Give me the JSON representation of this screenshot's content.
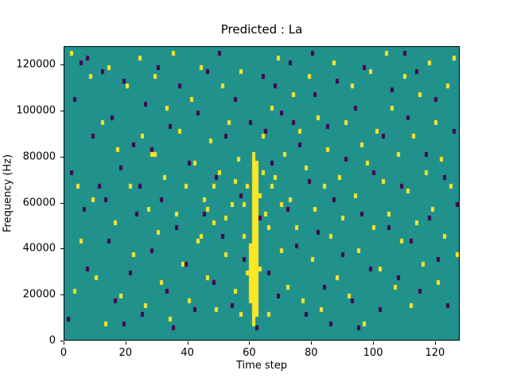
{
  "chart_data": {
    "type": "heatmap",
    "title": "Predicted : La",
    "xlabel": "Time step",
    "ylabel": "Frequency (Hz)",
    "x_range": [
      0,
      128
    ],
    "y_range": [
      0,
      128000
    ],
    "x_ticks": {
      "values": [
        0,
        20,
        40,
        60,
        80,
        100,
        120
      ],
      "labels": [
        "0",
        "20",
        "40",
        "60",
        "80",
        "100",
        "120"
      ]
    },
    "y_ticks": {
      "values": [
        0,
        20000,
        40000,
        60000,
        80000,
        100000,
        120000
      ],
      "labels": [
        "0",
        "20000",
        "40000",
        "60000",
        "80000",
        "100000",
        "120000"
      ]
    },
    "grid": {
      "time_steps": 128,
      "freq_bins": 64,
      "hz_per_bin": 2000
    },
    "colors": {
      "background": "#21918c",
      "active": "#fde725",
      "inactive": "#440154",
      "frame": "#000000"
    },
    "legend": "none",
    "streaks": [
      {
        "t": 60,
        "bin_start": 9,
        "bin_end": 20
      },
      {
        "t": 61,
        "bin_start": 3,
        "bin_end": 40
      },
      {
        "t": 62,
        "bin_start": 5,
        "bin_end": 38
      }
    ],
    "cells": {
      "yellow": [
        [
          2,
          62
        ],
        [
          3,
          10
        ],
        [
          4,
          33
        ],
        [
          5,
          21
        ],
        [
          8,
          57
        ],
        [
          9,
          30
        ],
        [
          10,
          13
        ],
        [
          12,
          47
        ],
        [
          13,
          3
        ],
        [
          14,
          59
        ],
        [
          16,
          25
        ],
        [
          17,
          41
        ],
        [
          18,
          9
        ],
        [
          20,
          55
        ],
        [
          21,
          33
        ],
        [
          22,
          18
        ],
        [
          24,
          61
        ],
        [
          25,
          44
        ],
        [
          26,
          7
        ],
        [
          27,
          28
        ],
        [
          28,
          40
        ],
        [
          29,
          40
        ],
        [
          29,
          57
        ],
        [
          30,
          23
        ],
        [
          31,
          12
        ],
        [
          32,
          35
        ],
        [
          33,
          50
        ],
        [
          34,
          4
        ],
        [
          35,
          62
        ],
        [
          36,
          27
        ],
        [
          37,
          45
        ],
        [
          38,
          16
        ],
        [
          39,
          33
        ],
        [
          40,
          8
        ],
        [
          41,
          52
        ],
        [
          42,
          38
        ],
        [
          43,
          21
        ],
        [
          44,
          59
        ],
        [
          45,
          30
        ],
        [
          46,
          13
        ],
        [
          47,
          43
        ],
        [
          48,
          25
        ],
        [
          49,
          6
        ],
        [
          50,
          36
        ],
        [
          51,
          55
        ],
        [
          52,
          18
        ],
        [
          53,
          47
        ],
        [
          54,
          29
        ],
        [
          55,
          10
        ],
        [
          56,
          39
        ],
        [
          57,
          58
        ],
        [
          58,
          22
        ],
        [
          59,
          33
        ],
        [
          63,
          15
        ],
        [
          64,
          44
        ],
        [
          65,
          27
        ],
        [
          66,
          5
        ],
        [
          67,
          50
        ],
        [
          68,
          35
        ],
        [
          69,
          61
        ],
        [
          70,
          19
        ],
        [
          71,
          40
        ],
        [
          72,
          11
        ],
        [
          73,
          30
        ],
        [
          74,
          53
        ],
        [
          75,
          24
        ],
        [
          76,
          45
        ],
        [
          77,
          8
        ],
        [
          78,
          37
        ],
        [
          79,
          57
        ],
        [
          80,
          17
        ],
        [
          81,
          28
        ],
        [
          82,
          48
        ],
        [
          83,
          6
        ],
        [
          84,
          33
        ],
        [
          85,
          41
        ],
        [
          86,
          22
        ],
        [
          87,
          60
        ],
        [
          88,
          13
        ],
        [
          89,
          35
        ],
        [
          90,
          26
        ],
        [
          91,
          47
        ],
        [
          92,
          9
        ],
        [
          93,
          55
        ],
        [
          94,
          31
        ],
        [
          95,
          19
        ],
        [
          96,
          42
        ],
        [
          97,
          3
        ],
        [
          98,
          38
        ],
        [
          99,
          58
        ],
        [
          100,
          24
        ],
        [
          101,
          45
        ],
        [
          102,
          15
        ],
        [
          103,
          34
        ],
        [
          104,
          62
        ],
        [
          105,
          27
        ],
        [
          106,
          50
        ],
        [
          107,
          11
        ],
        [
          108,
          40
        ],
        [
          109,
          21
        ],
        [
          110,
          57
        ],
        [
          111,
          32
        ],
        [
          112,
          7
        ],
        [
          113,
          44
        ],
        [
          114,
          25
        ],
        [
          115,
          53
        ],
        [
          116,
          16
        ],
        [
          117,
          36
        ],
        [
          118,
          60
        ],
        [
          119,
          28
        ],
        [
          120,
          47
        ],
        [
          121,
          12
        ],
        [
          122,
          39
        ],
        [
          123,
          22
        ],
        [
          124,
          55
        ],
        [
          125,
          33
        ],
        [
          126,
          61
        ],
        [
          127,
          18
        ],
        [
          55,
          34
        ],
        [
          58,
          29
        ],
        [
          63,
          31
        ],
        [
          66,
          24
        ],
        [
          59,
          14
        ],
        [
          57,
          5
        ],
        [
          60,
          8
        ],
        [
          64,
          36
        ],
        [
          67,
          33
        ],
        [
          70,
          29
        ],
        [
          46,
          28
        ],
        [
          44,
          22
        ],
        [
          48,
          33
        ],
        [
          52,
          26
        ]
      ],
      "purple": [
        [
          1,
          4
        ],
        [
          3,
          52
        ],
        [
          5,
          60
        ],
        [
          6,
          28
        ],
        [
          7,
          15
        ],
        [
          9,
          44
        ],
        [
          11,
          33
        ],
        [
          12,
          58
        ],
        [
          14,
          21
        ],
        [
          15,
          48
        ],
        [
          16,
          8
        ],
        [
          18,
          37
        ],
        [
          19,
          56
        ],
        [
          21,
          14
        ],
        [
          22,
          42
        ],
        [
          23,
          27
        ],
        [
          25,
          5
        ],
        [
          26,
          51
        ],
        [
          28,
          19
        ],
        [
          28,
          41
        ],
        [
          30,
          59
        ],
        [
          31,
          30
        ],
        [
          33,
          10
        ],
        [
          34,
          46
        ],
        [
          36,
          24
        ],
        [
          37,
          55
        ],
        [
          39,
          16
        ],
        [
          40,
          38
        ],
        [
          42,
          6
        ],
        [
          43,
          49
        ],
        [
          45,
          27
        ],
        [
          46,
          58
        ],
        [
          48,
          12
        ],
        [
          49,
          35
        ],
        [
          51,
          22
        ],
        [
          52,
          44
        ],
        [
          54,
          7
        ],
        [
          55,
          52
        ],
        [
          57,
          31
        ],
        [
          58,
          17
        ],
        [
          60,
          47
        ],
        [
          63,
          26
        ],
        [
          64,
          57
        ],
        [
          66,
          14
        ],
        [
          67,
          38
        ],
        [
          69,
          9
        ],
        [
          70,
          49
        ],
        [
          72,
          28
        ],
        [
          73,
          60
        ],
        [
          75,
          20
        ],
        [
          76,
          42
        ],
        [
          78,
          5
        ],
        [
          79,
          34
        ],
        [
          81,
          53
        ],
        [
          82,
          23
        ],
        [
          84,
          11
        ],
        [
          85,
          46
        ],
        [
          87,
          30
        ],
        [
          88,
          56
        ],
        [
          90,
          18
        ],
        [
          91,
          39
        ],
        [
          93,
          8
        ],
        [
          94,
          50
        ],
        [
          96,
          27
        ],
        [
          97,
          59
        ],
        [
          99,
          15
        ],
        [
          100,
          36
        ],
        [
          102,
          6
        ],
        [
          103,
          44
        ],
        [
          105,
          24
        ],
        [
          106,
          54
        ],
        [
          108,
          13
        ],
        [
          109,
          33
        ],
        [
          111,
          48
        ],
        [
          112,
          21
        ],
        [
          114,
          58
        ],
        [
          115,
          10
        ],
        [
          117,
          40
        ],
        [
          118,
          26
        ],
        [
          120,
          52
        ],
        [
          121,
          17
        ],
        [
          123,
          35
        ],
        [
          124,
          7
        ],
        [
          126,
          45
        ],
        [
          127,
          29
        ],
        [
          2,
          36
        ],
        [
          7,
          61
        ],
        [
          13,
          30
        ],
        [
          19,
          3
        ],
        [
          24,
          33
        ],
        [
          35,
          2
        ],
        [
          50,
          62
        ],
        [
          65,
          45
        ],
        [
          80,
          62
        ],
        [
          95,
          2
        ],
        [
          110,
          62
        ],
        [
          62,
          2
        ],
        [
          68,
          55
        ],
        [
          74,
          47
        ],
        [
          86,
          3
        ]
      ]
    }
  }
}
